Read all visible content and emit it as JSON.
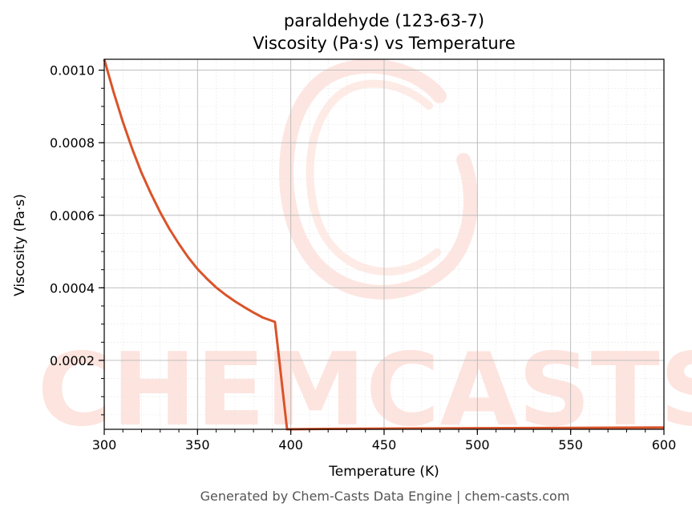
{
  "chart_data": {
    "type": "line",
    "title_line1": "paraldehyde (123-63-7)",
    "title_line2": "Viscosity (Pa·s) vs Temperature",
    "xlabel": "Temperature (K)",
    "ylabel": "Viscosity (Pa·s)",
    "xlim": [
      300,
      600
    ],
    "ylim": [
      1e-05,
      0.00103
    ],
    "x_ticks": [
      300,
      350,
      400,
      450,
      500,
      550,
      600
    ],
    "x_tick_labels": [
      "300",
      "350",
      "400",
      "450",
      "500",
      "550",
      "600"
    ],
    "y_ticks": [
      0.0002,
      0.0004,
      0.0006,
      0.0008,
      0.001
    ],
    "y_tick_labels": [
      "0.0002",
      "0.0004",
      "0.0006",
      "0.0008",
      "0.0010"
    ],
    "grid": true,
    "minor_grid": true,
    "series_color": "#d9542a",
    "series": [
      {
        "x": [
          300,
          305,
          310,
          315,
          320,
          325,
          330,
          335,
          340,
          345,
          350,
          355,
          360,
          365,
          370,
          375,
          380,
          385,
          391.5,
          398,
          420,
          450,
          500,
          550,
          600
        ],
        "values": [
          0.00103,
          0.00094,
          0.000857,
          0.000783,
          0.000717,
          0.00066,
          0.000608,
          0.000562,
          0.000521,
          0.000484,
          0.000452,
          0.000425,
          0.000401,
          0.000381,
          0.000363,
          0.000347,
          0.000332,
          0.000318,
          0.000306,
          1e-05,
          1.1e-05,
          1.2e-05,
          1.3e-05,
          1.4e-05,
          1.5e-05
        ]
      }
    ]
  },
  "watermark": {
    "text": "CHEMCASTS",
    "color": "#fde2dc"
  },
  "footer": "Generated by Chem-Casts Data Engine | chem-casts.com"
}
